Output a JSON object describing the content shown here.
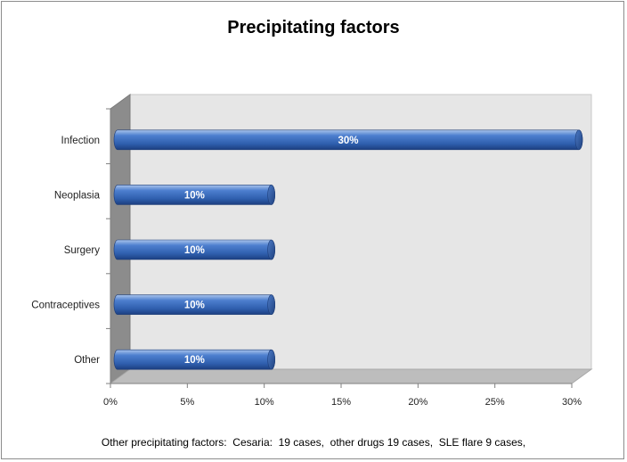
{
  "chart_data": {
    "type": "bar",
    "orientation": "horizontal",
    "three_d": true,
    "title": "Precipitating factors",
    "categories": [
      "Infection",
      "Neoplasia",
      "Surgery",
      "Contraceptives",
      "Other"
    ],
    "values": [
      30,
      10,
      10,
      10,
      10
    ],
    "data_labels": [
      "30%",
      "10%",
      "10%",
      "10%",
      "10%"
    ],
    "xlim": [
      0,
      30
    ],
    "x_ticks": [
      0,
      5,
      10,
      15,
      20,
      25,
      30
    ],
    "x_tick_labels": [
      "0%",
      "5%",
      "10%",
      "15%",
      "20%",
      "25%",
      "30%"
    ],
    "xlabel": "",
    "ylabel": "",
    "grid": false,
    "legend": "none",
    "bar_color": "#3f70c0",
    "wall_color": "#e6e6e6",
    "note": "Other precipitating factors:  Cesaria:  19 cases,  other drugs 19 cases,  SLE flare 9 cases,"
  }
}
